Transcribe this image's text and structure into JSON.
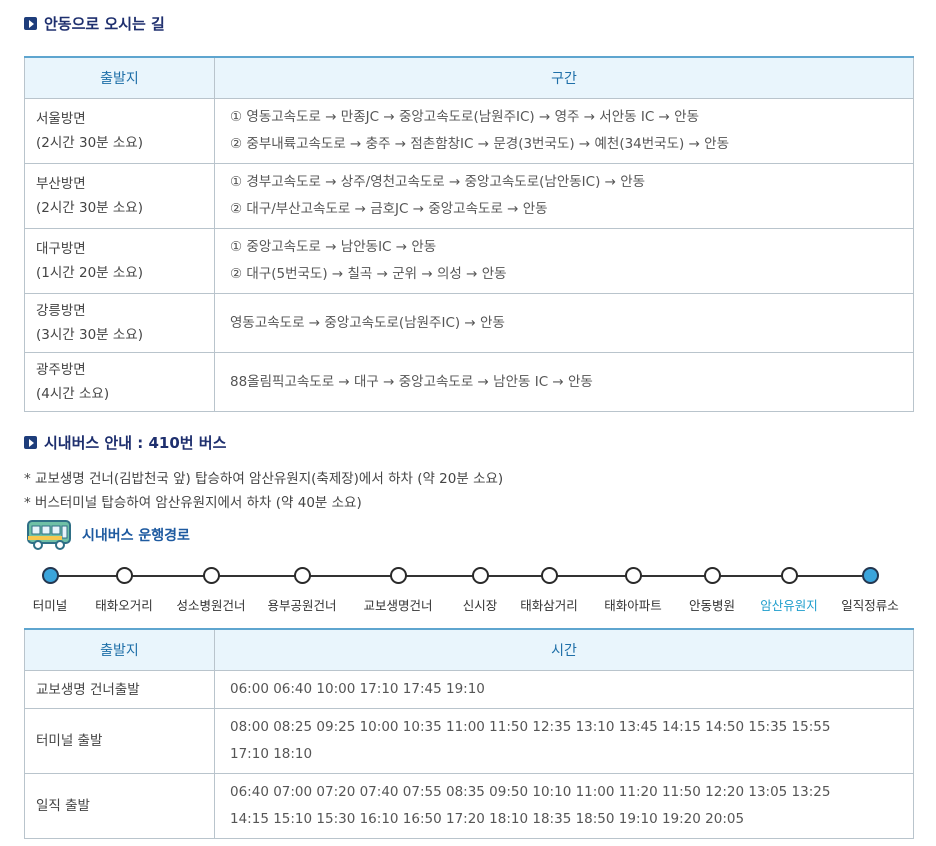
{
  "directions": {
    "title": "안동으로 오시는 길",
    "headers": [
      "출발지",
      "구간"
    ],
    "rows": [
      {
        "origin": "서울방면",
        "duration": "(2시간 30분 소요)",
        "routes": [
          "① 영동고속도로 → 만종JC → 중앙고속도로(남원주IC) → 영주 → 서안동 IC → 안동",
          "② 중부내륙고속도로 → 충주 → 점촌함창IC → 문경(3번국도) → 예천(34번국도) → 안동"
        ]
      },
      {
        "origin": "부산방면",
        "duration": "(2시간 30분 소요)",
        "routes": [
          "① 경부고속도로 → 상주/영천고속도로 → 중앙고속도로(남안동IC) → 안동",
          "② 대구/부산고속도로 → 금호JC → 중앙고속도로 → 안동"
        ]
      },
      {
        "origin": "대구방면",
        "duration": "(1시간 20분 소요)",
        "routes": [
          "① 중앙고속도로 → 남안동IC → 안동",
          "② 대구(5번국도) → 칠곡 → 군위 → 의성 → 안동"
        ]
      },
      {
        "origin": "강릉방면",
        "duration": "(3시간 30분 소요)",
        "routes": [
          "영동고속도로 → 중앙고속도로(남원주IC) → 안동"
        ]
      },
      {
        "origin": "광주방면",
        "duration": "(4시간 소요)",
        "routes": [
          "88올림픽고속도로 → 대구 → 중앙고속도로 → 남안동 IC → 안동"
        ]
      }
    ]
  },
  "bus": {
    "title": "시내버스 안내 : 410번 버스",
    "notes": [
      "* 교보생명 건너(김밥천국 앞) 탑승하여 암산유원지(축제장)에서 하차 (약 20분 소요)",
      "* 버스터미널 탑승하여 암산유원지에서 하차 (약 40분 소요)"
    ],
    "route_label": "시내버스 운행경로",
    "bus_icon": "bus-icon",
    "stops": [
      "터미널",
      "태화오거리",
      "성소병원건너",
      "용부공원건너",
      "교보생명건너",
      "신시장",
      "태화삼거리",
      "태화아파트",
      "안동병원",
      "암산유원지",
      "일직정류소"
    ],
    "highlight_stop": "암산유원지",
    "highlight_color": "#1f9ecc",
    "schedule_headers": [
      "출발지",
      "시간"
    ],
    "schedule": [
      {
        "origin": "교보생명 건너출발",
        "times": [
          "06:00 06:40 10:00 17:10 17:45 19:10"
        ]
      },
      {
        "origin": "터미널 출발",
        "times": [
          "08:00 08:25 09:25 10:00 10:35 11:00 11:50 12:35 13:10 13:45 14:15 14:50 15:35 15:55",
          "17:10 18:10"
        ]
      },
      {
        "origin": "일직 출발",
        "times": [
          "06:40 07:00 07:20 07:40 07:55 08:35 09:50 10:10 11:00 11:20 11:50 12:20 13:05 13:25",
          "14:15 15:10 15:30 16:10 16:50 17:20 18:10 18:35 18:50 19:10 19:20 20:05"
        ]
      }
    ]
  }
}
